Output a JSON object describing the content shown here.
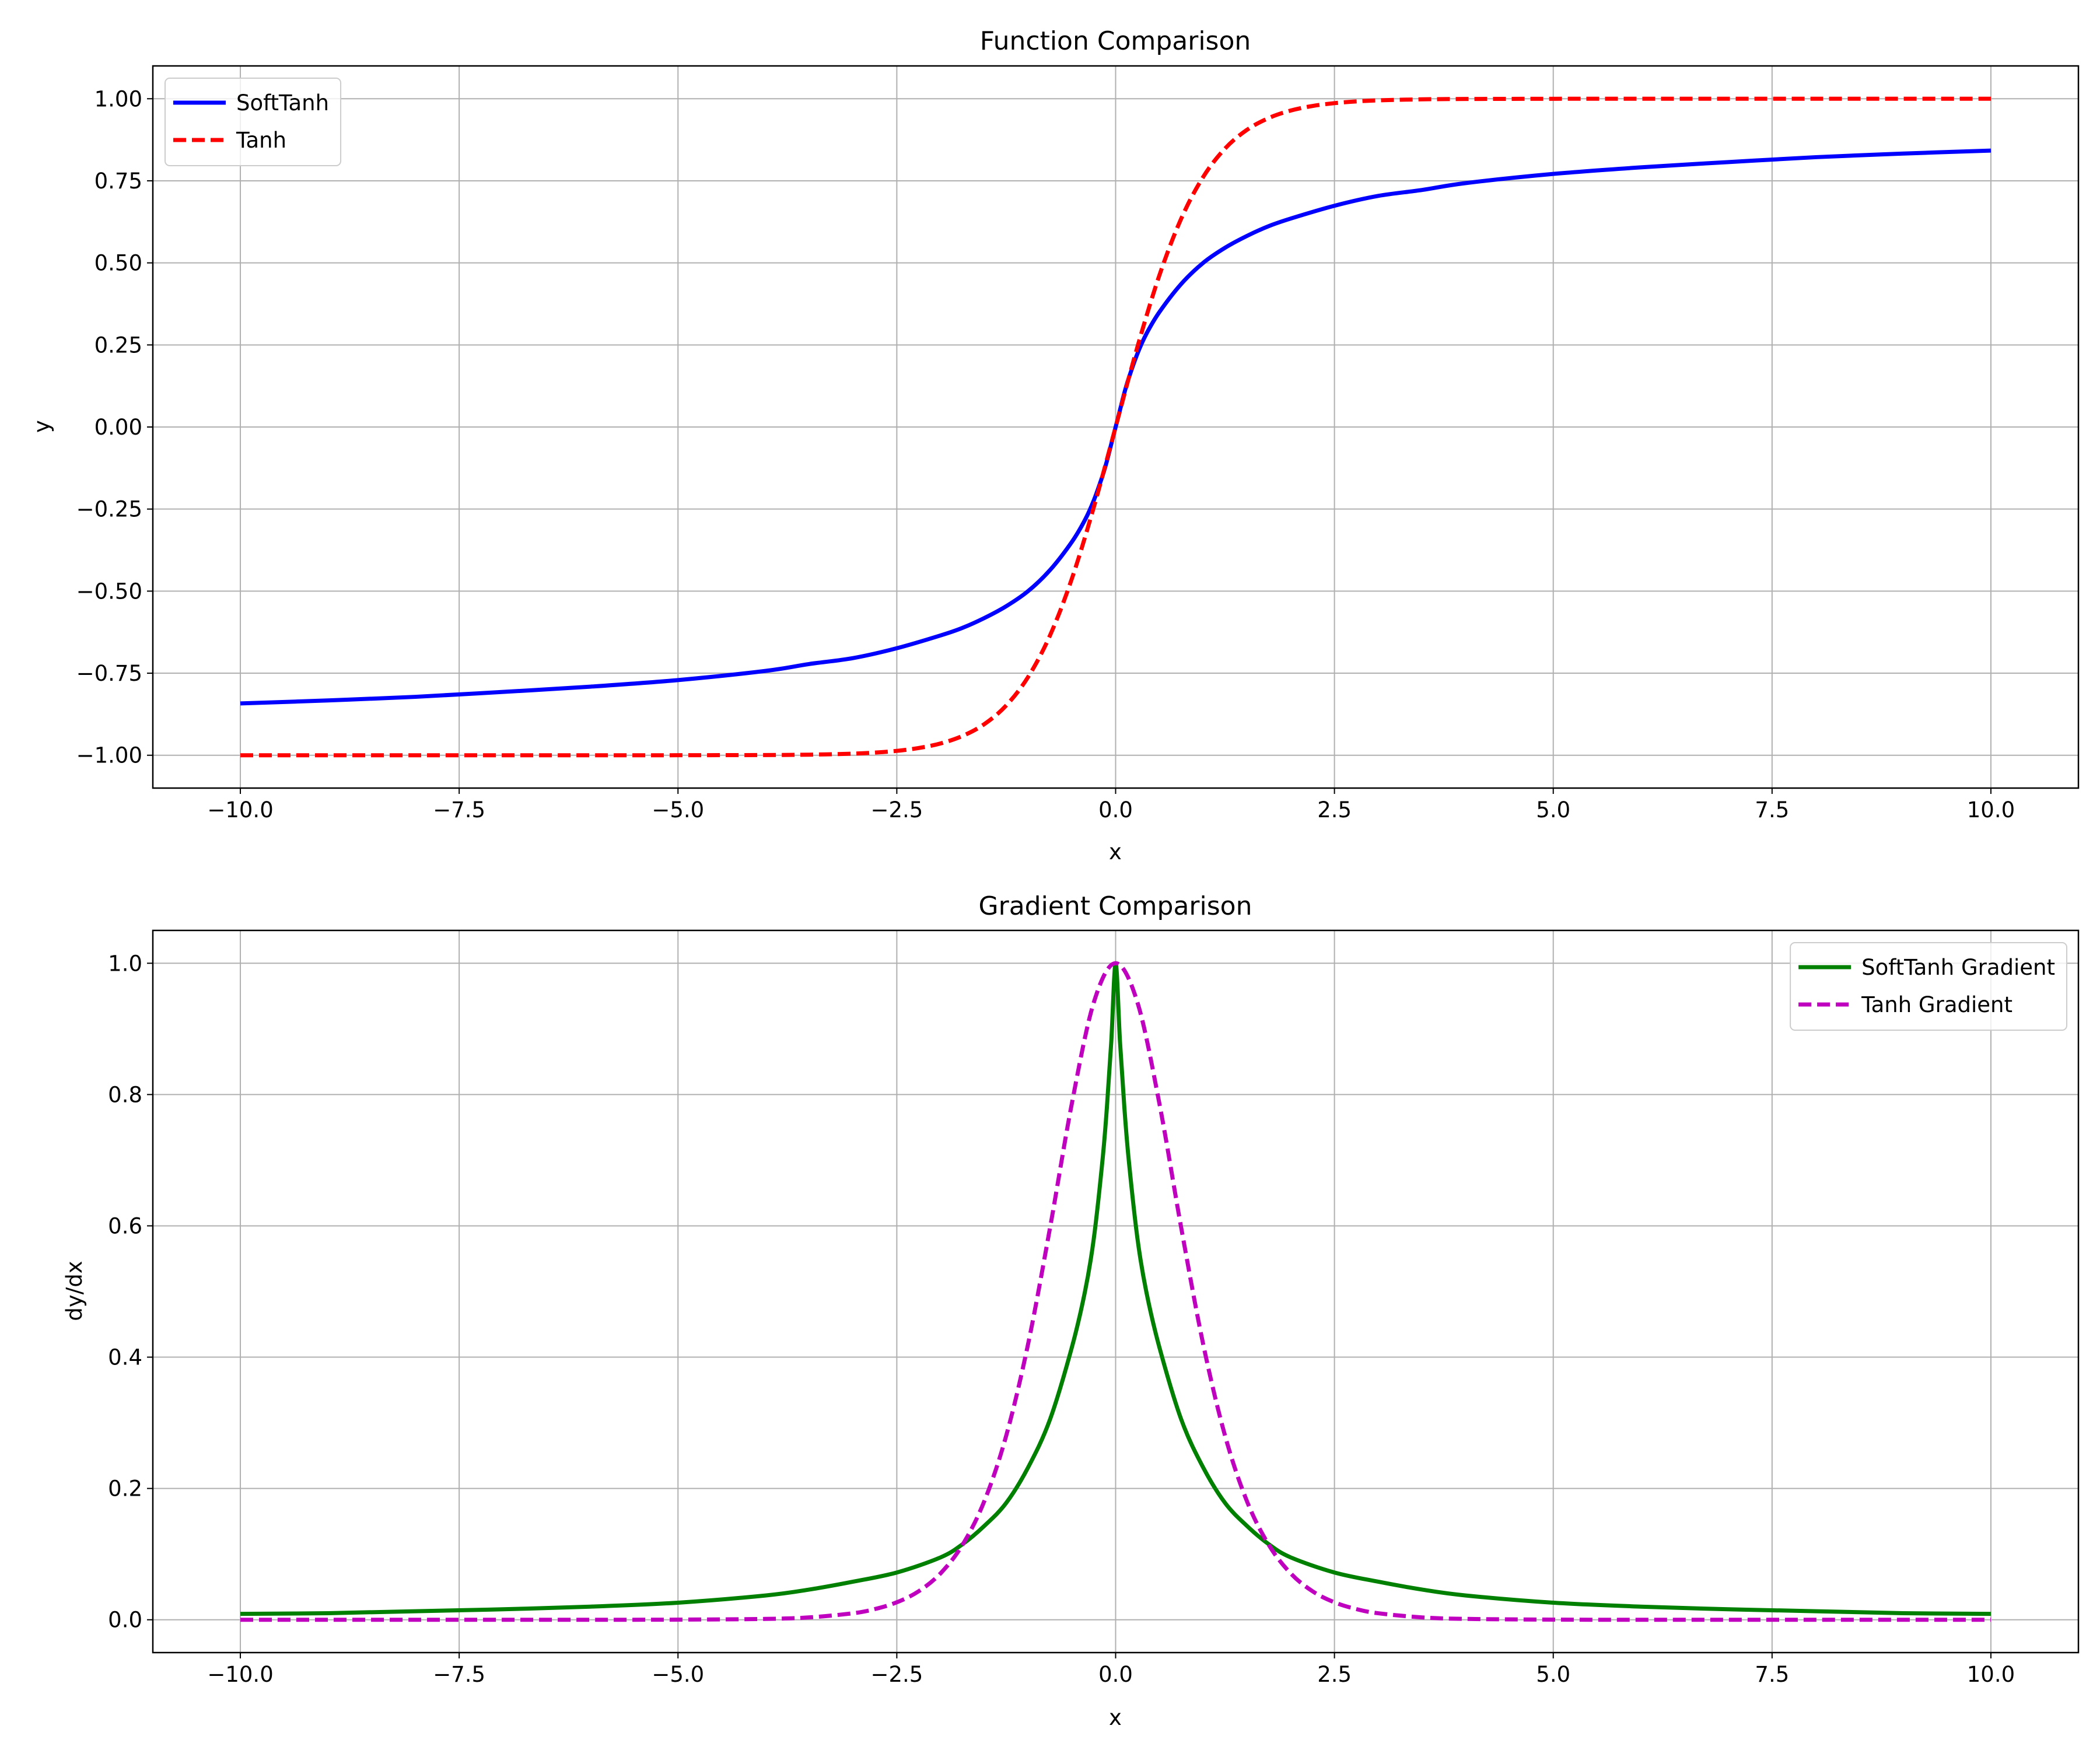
{
  "chart_data": [
    {
      "type": "line",
      "title": "Function Comparison",
      "xlabel": "x",
      "ylabel": "y",
      "xlim": [
        -11,
        11
      ],
      "ylim": [
        -1.1,
        1.1
      ],
      "xticks": [
        -10,
        -7.5,
        -5,
        -2.5,
        0,
        2.5,
        5,
        7.5,
        10
      ],
      "xtick_labels": [
        "−10.0",
        "−7.5",
        "−5.0",
        "−2.5",
        "0.0",
        "2.5",
        "5.0",
        "7.5",
        "10.0"
      ],
      "yticks": [
        -1,
        -0.75,
        -0.5,
        -0.25,
        0,
        0.25,
        0.5,
        0.75,
        1
      ],
      "ytick_labels": [
        "−1.00",
        "−0.75",
        "−0.50",
        "−0.25",
        "0.00",
        "0.25",
        "0.50",
        "0.75",
        "1.00"
      ],
      "grid": true,
      "legend_position": "upper left",
      "series": [
        {
          "name": "SoftTanh",
          "color": "#0000ff",
          "dash": "solid",
          "x": [
            -10,
            -9,
            -8,
            -7,
            -6,
            -5,
            -4,
            -3.5,
            -3,
            -2.5,
            -2,
            -1.75,
            -1.5,
            -1.25,
            -1,
            -0.75,
            -0.5,
            -0.35,
            -0.25,
            -0.15,
            -0.1,
            -0.05,
            0,
            0.05,
            0.1,
            0.15,
            0.25,
            0.35,
            0.5,
            0.75,
            1,
            1.25,
            1.5,
            1.75,
            2,
            2.5,
            3,
            3.5,
            4,
            5,
            6,
            7,
            8,
            9,
            10
          ],
          "y": [
            -0.842,
            -0.833,
            -0.822,
            -0.807,
            -0.791,
            -0.771,
            -0.743,
            -0.722,
            -0.704,
            -0.674,
            -0.635,
            -0.612,
            -0.582,
            -0.546,
            -0.5,
            -0.436,
            -0.35,
            -0.283,
            -0.224,
            -0.149,
            -0.104,
            -0.052,
            0,
            0.052,
            0.104,
            0.149,
            0.224,
            0.283,
            0.35,
            0.436,
            0.5,
            0.546,
            0.582,
            0.612,
            0.635,
            0.674,
            0.704,
            0.722,
            0.743,
            0.771,
            0.791,
            0.807,
            0.822,
            0.833,
            0.842
          ]
        },
        {
          "name": "Tanh",
          "color": "#ff0000",
          "dash": "dashed",
          "x": [
            -10,
            -8,
            -6,
            -5,
            -4,
            -3.5,
            -3,
            -2.75,
            -2.5,
            -2.25,
            -2,
            -1.75,
            -1.5,
            -1.25,
            -1,
            -0.75,
            -0.5,
            -0.25,
            0,
            0.25,
            0.5,
            0.75,
            1,
            1.25,
            1.5,
            1.75,
            2,
            2.25,
            2.5,
            2.75,
            3,
            3.5,
            4,
            5,
            6,
            8,
            10
          ],
          "y": [
            -1,
            -1,
            -1,
            -0.9999,
            -0.9993,
            -0.9982,
            -0.9951,
            -0.9919,
            -0.9866,
            -0.978,
            -0.964,
            -0.9413,
            -0.9051,
            -0.8483,
            -0.7616,
            -0.6351,
            -0.4621,
            -0.2449,
            0,
            0.2449,
            0.4621,
            0.6351,
            0.7616,
            0.8483,
            0.9051,
            0.9413,
            0.964,
            0.978,
            0.9866,
            0.9919,
            0.9951,
            0.9982,
            0.9993,
            0.9999,
            1,
            1,
            1
          ]
        }
      ]
    },
    {
      "type": "line",
      "title": "Gradient Comparison",
      "xlabel": "x",
      "ylabel": "dy/dx",
      "xlim": [
        -11,
        11
      ],
      "ylim": [
        -0.05,
        1.05
      ],
      "xticks": [
        -10,
        -7.5,
        -5,
        -2.5,
        0,
        2.5,
        5,
        7.5,
        10
      ],
      "xtick_labels": [
        "−10.0",
        "−7.5",
        "−5.0",
        "−2.5",
        "0.0",
        "2.5",
        "5.0",
        "7.5",
        "10.0"
      ],
      "yticks": [
        0,
        0.2,
        0.4,
        0.6,
        0.8,
        1
      ],
      "ytick_labels": [
        "0.0",
        "0.2",
        "0.4",
        "0.6",
        "0.8",
        "1.0"
      ],
      "grid": true,
      "legend_position": "upper right",
      "series": [
        {
          "name": "SoftTanh Gradient",
          "color": "#008000",
          "dash": "solid",
          "x": [
            -10,
            -9,
            -8,
            -7,
            -6,
            -5,
            -4,
            -3.5,
            -3,
            -2.5,
            -2,
            -1.75,
            -1.5,
            -1.25,
            -1,
            -0.75,
            -0.5,
            -0.35,
            -0.25,
            -0.15,
            -0.1,
            -0.05,
            0,
            0.05,
            0.1,
            0.15,
            0.25,
            0.35,
            0.5,
            0.75,
            1,
            1.25,
            1.5,
            1.75,
            2,
            2.5,
            3,
            3.5,
            4,
            5,
            6,
            7,
            8,
            9,
            10
          ],
          "y": [
            0.009,
            0.01,
            0.013,
            0.016,
            0.02,
            0.026,
            0.037,
            0.046,
            0.058,
            0.072,
            0.095,
            0.115,
            0.143,
            0.178,
            0.232,
            0.305,
            0.415,
            0.5,
            0.58,
            0.7,
            0.78,
            0.88,
            1.0,
            0.88,
            0.78,
            0.7,
            0.58,
            0.5,
            0.415,
            0.305,
            0.232,
            0.178,
            0.143,
            0.115,
            0.095,
            0.072,
            0.058,
            0.046,
            0.037,
            0.026,
            0.02,
            0.016,
            0.013,
            0.01,
            0.009
          ]
        },
        {
          "name": "Tanh Gradient",
          "color": "#bf00bf",
          "dash": "dashed",
          "x": [
            -10,
            -8,
            -6,
            -5,
            -4,
            -3.5,
            -3,
            -2.75,
            -2.5,
            -2.25,
            -2,
            -1.75,
            -1.5,
            -1.25,
            -1,
            -0.75,
            -0.5,
            -0.25,
            0,
            0.25,
            0.5,
            0.75,
            1,
            1.25,
            1.5,
            1.75,
            2,
            2.25,
            2.5,
            2.75,
            3,
            3.5,
            4,
            5,
            6,
            8,
            10
          ],
          "y": [
            0,
            0,
            0,
            0.0002,
            0.0013,
            0.0036,
            0.0099,
            0.0163,
            0.0266,
            0.0434,
            0.0707,
            0.114,
            0.1807,
            0.2804,
            0.42,
            0.5966,
            0.7864,
            0.94,
            1.0,
            0.94,
            0.7864,
            0.5966,
            0.42,
            0.2804,
            0.1807,
            0.114,
            0.0707,
            0.0434,
            0.0266,
            0.0163,
            0.0099,
            0.0036,
            0.0013,
            0.0002,
            0,
            0,
            0
          ]
        }
      ]
    }
  ]
}
